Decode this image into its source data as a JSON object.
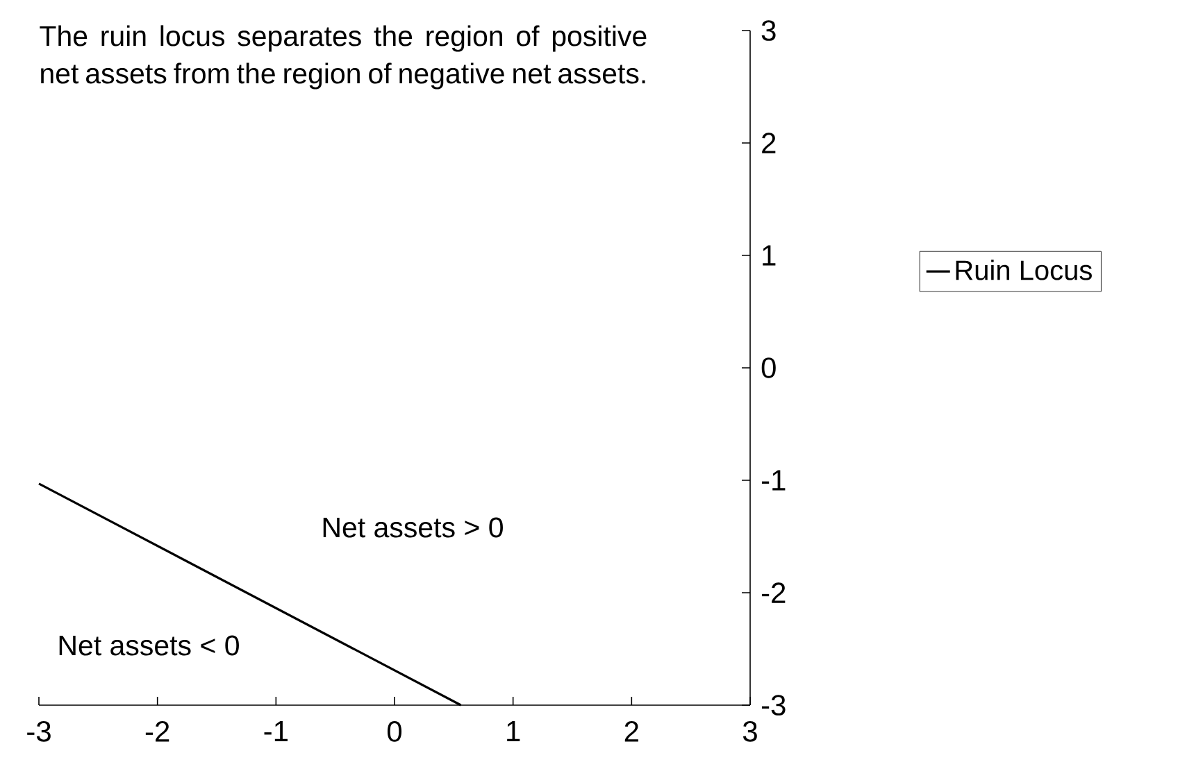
{
  "chart_data": {
    "type": "line",
    "annotations": [
      "The ruin locus separates the region of positive net assets from the region of negative net assets.",
      "Net assets > 0",
      "Net assets < 0"
    ],
    "series": [
      {
        "name": "Ruin Locus",
        "color": "#000000",
        "x": [
          -3,
          0.56
        ],
        "values": [
          -1.03,
          -3
        ]
      }
    ],
    "xlim": [
      -3,
      3
    ],
    "ylim": [
      -3,
      3
    ],
    "xticks": [
      -3,
      -2,
      -1,
      0,
      1,
      2,
      3
    ],
    "yticks": [
      -3,
      -2,
      -1,
      0,
      1,
      2,
      3
    ],
    "grid": false,
    "legend": "right",
    "marker": "none",
    "line_style": "solid"
  }
}
